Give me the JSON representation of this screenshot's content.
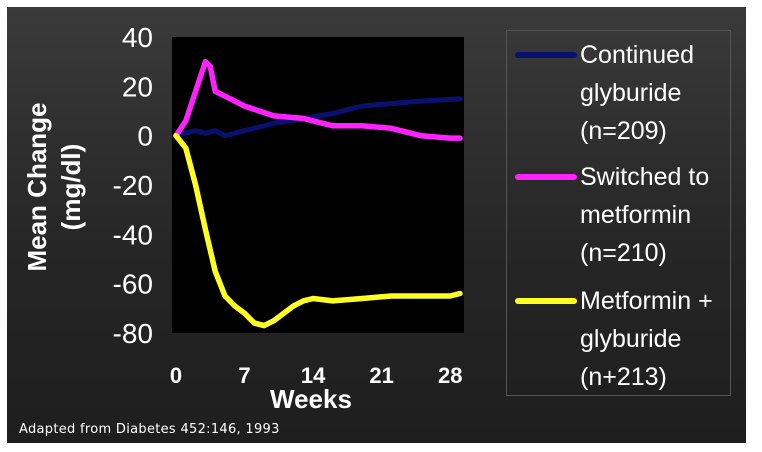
{
  "chart_data": {
    "type": "line",
    "title": "",
    "xlabel": "Weeks",
    "ylabel": "Mean Change\n(mg/dl)",
    "xticks": [
      0,
      7,
      14,
      21,
      28
    ],
    "yticks": [
      40,
      20,
      0,
      -20,
      -40,
      -60,
      -80
    ],
    "xlim": [
      0,
      29
    ],
    "ylim": [
      -80,
      40
    ],
    "legend_position": "right",
    "series": [
      {
        "name": "Continued\nglyburide\n(n=209)",
        "color": "#0a1070",
        "x": [
          0,
          1,
          2,
          3,
          4,
          5,
          7,
          10,
          13,
          16,
          19,
          22,
          25,
          29
        ],
        "y": [
          0,
          1,
          2,
          1,
          2,
          0,
          2,
          5,
          7,
          9,
          12,
          13,
          14,
          15
        ]
      },
      {
        "name": "Switched to\nmetformin\n(n=210)",
        "color": "#ff22ff",
        "x": [
          0,
          1,
          2,
          3,
          3.5,
          4,
          5,
          7,
          10,
          13,
          16,
          19,
          22,
          25,
          28,
          29
        ],
        "y": [
          0,
          6,
          18,
          30,
          28,
          18,
          16,
          12,
          8,
          7,
          4,
          4,
          3,
          0,
          -1,
          -1
        ]
      },
      {
        "name": "Metformin +\nglyburide\n(n+213)",
        "color": "#ffff22",
        "x": [
          0,
          1,
          2,
          3,
          4,
          5,
          6,
          7,
          8,
          9,
          10,
          11,
          12,
          13,
          14,
          16,
          19,
          22,
          25,
          28,
          29
        ],
        "y": [
          0,
          -5,
          -20,
          -38,
          -55,
          -65,
          -69,
          -72,
          -76,
          -77,
          -75,
          -72,
          -69,
          -67,
          -66,
          -67,
          -66,
          -65,
          -65,
          -65,
          -64
        ]
      }
    ]
  },
  "legend": {
    "entries": [
      "Continued\nglyburide\n(n=209)",
      "Switched to\nmetformin\n(n=210)",
      "Metformin +\nglyburide\n(n+213)"
    ]
  },
  "source_note": "Adapted from Diabetes 452:146, 1993"
}
